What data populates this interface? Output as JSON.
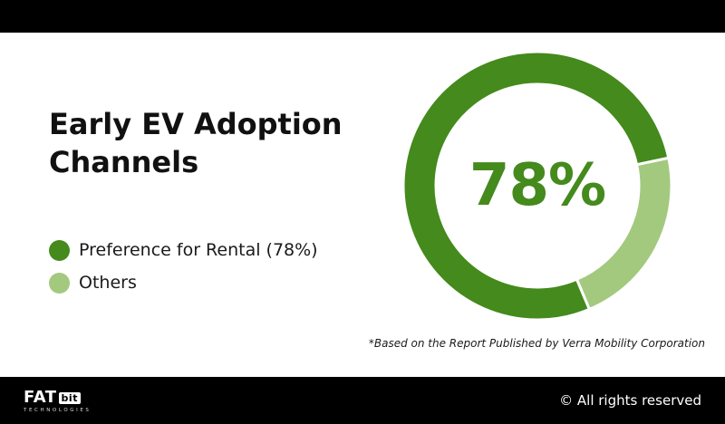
{
  "title": "Early EV Adoption Channels",
  "center_label": "78%",
  "legend": [
    {
      "label": "Preference for Rental (78%)",
      "color": "#448a1c"
    },
    {
      "label": "Others",
      "color": "#a3c97f"
    }
  ],
  "footnote": "*Based on the Report Published by Verra Mobility Corporation",
  "footer": {
    "logo_main": "FAT",
    "logo_box": "bit",
    "logo_sub": "TECHNOLOGIES",
    "copyright": "© All rights reserved"
  },
  "chart_data": {
    "type": "pie",
    "title": "Early EV Adoption Channels",
    "categories": [
      "Preference for Rental",
      "Others"
    ],
    "values": [
      78,
      22
    ],
    "colors": [
      "#448a1c",
      "#a3c97f"
    ],
    "donut": true,
    "center_text": "78%",
    "legend_position": "left"
  }
}
